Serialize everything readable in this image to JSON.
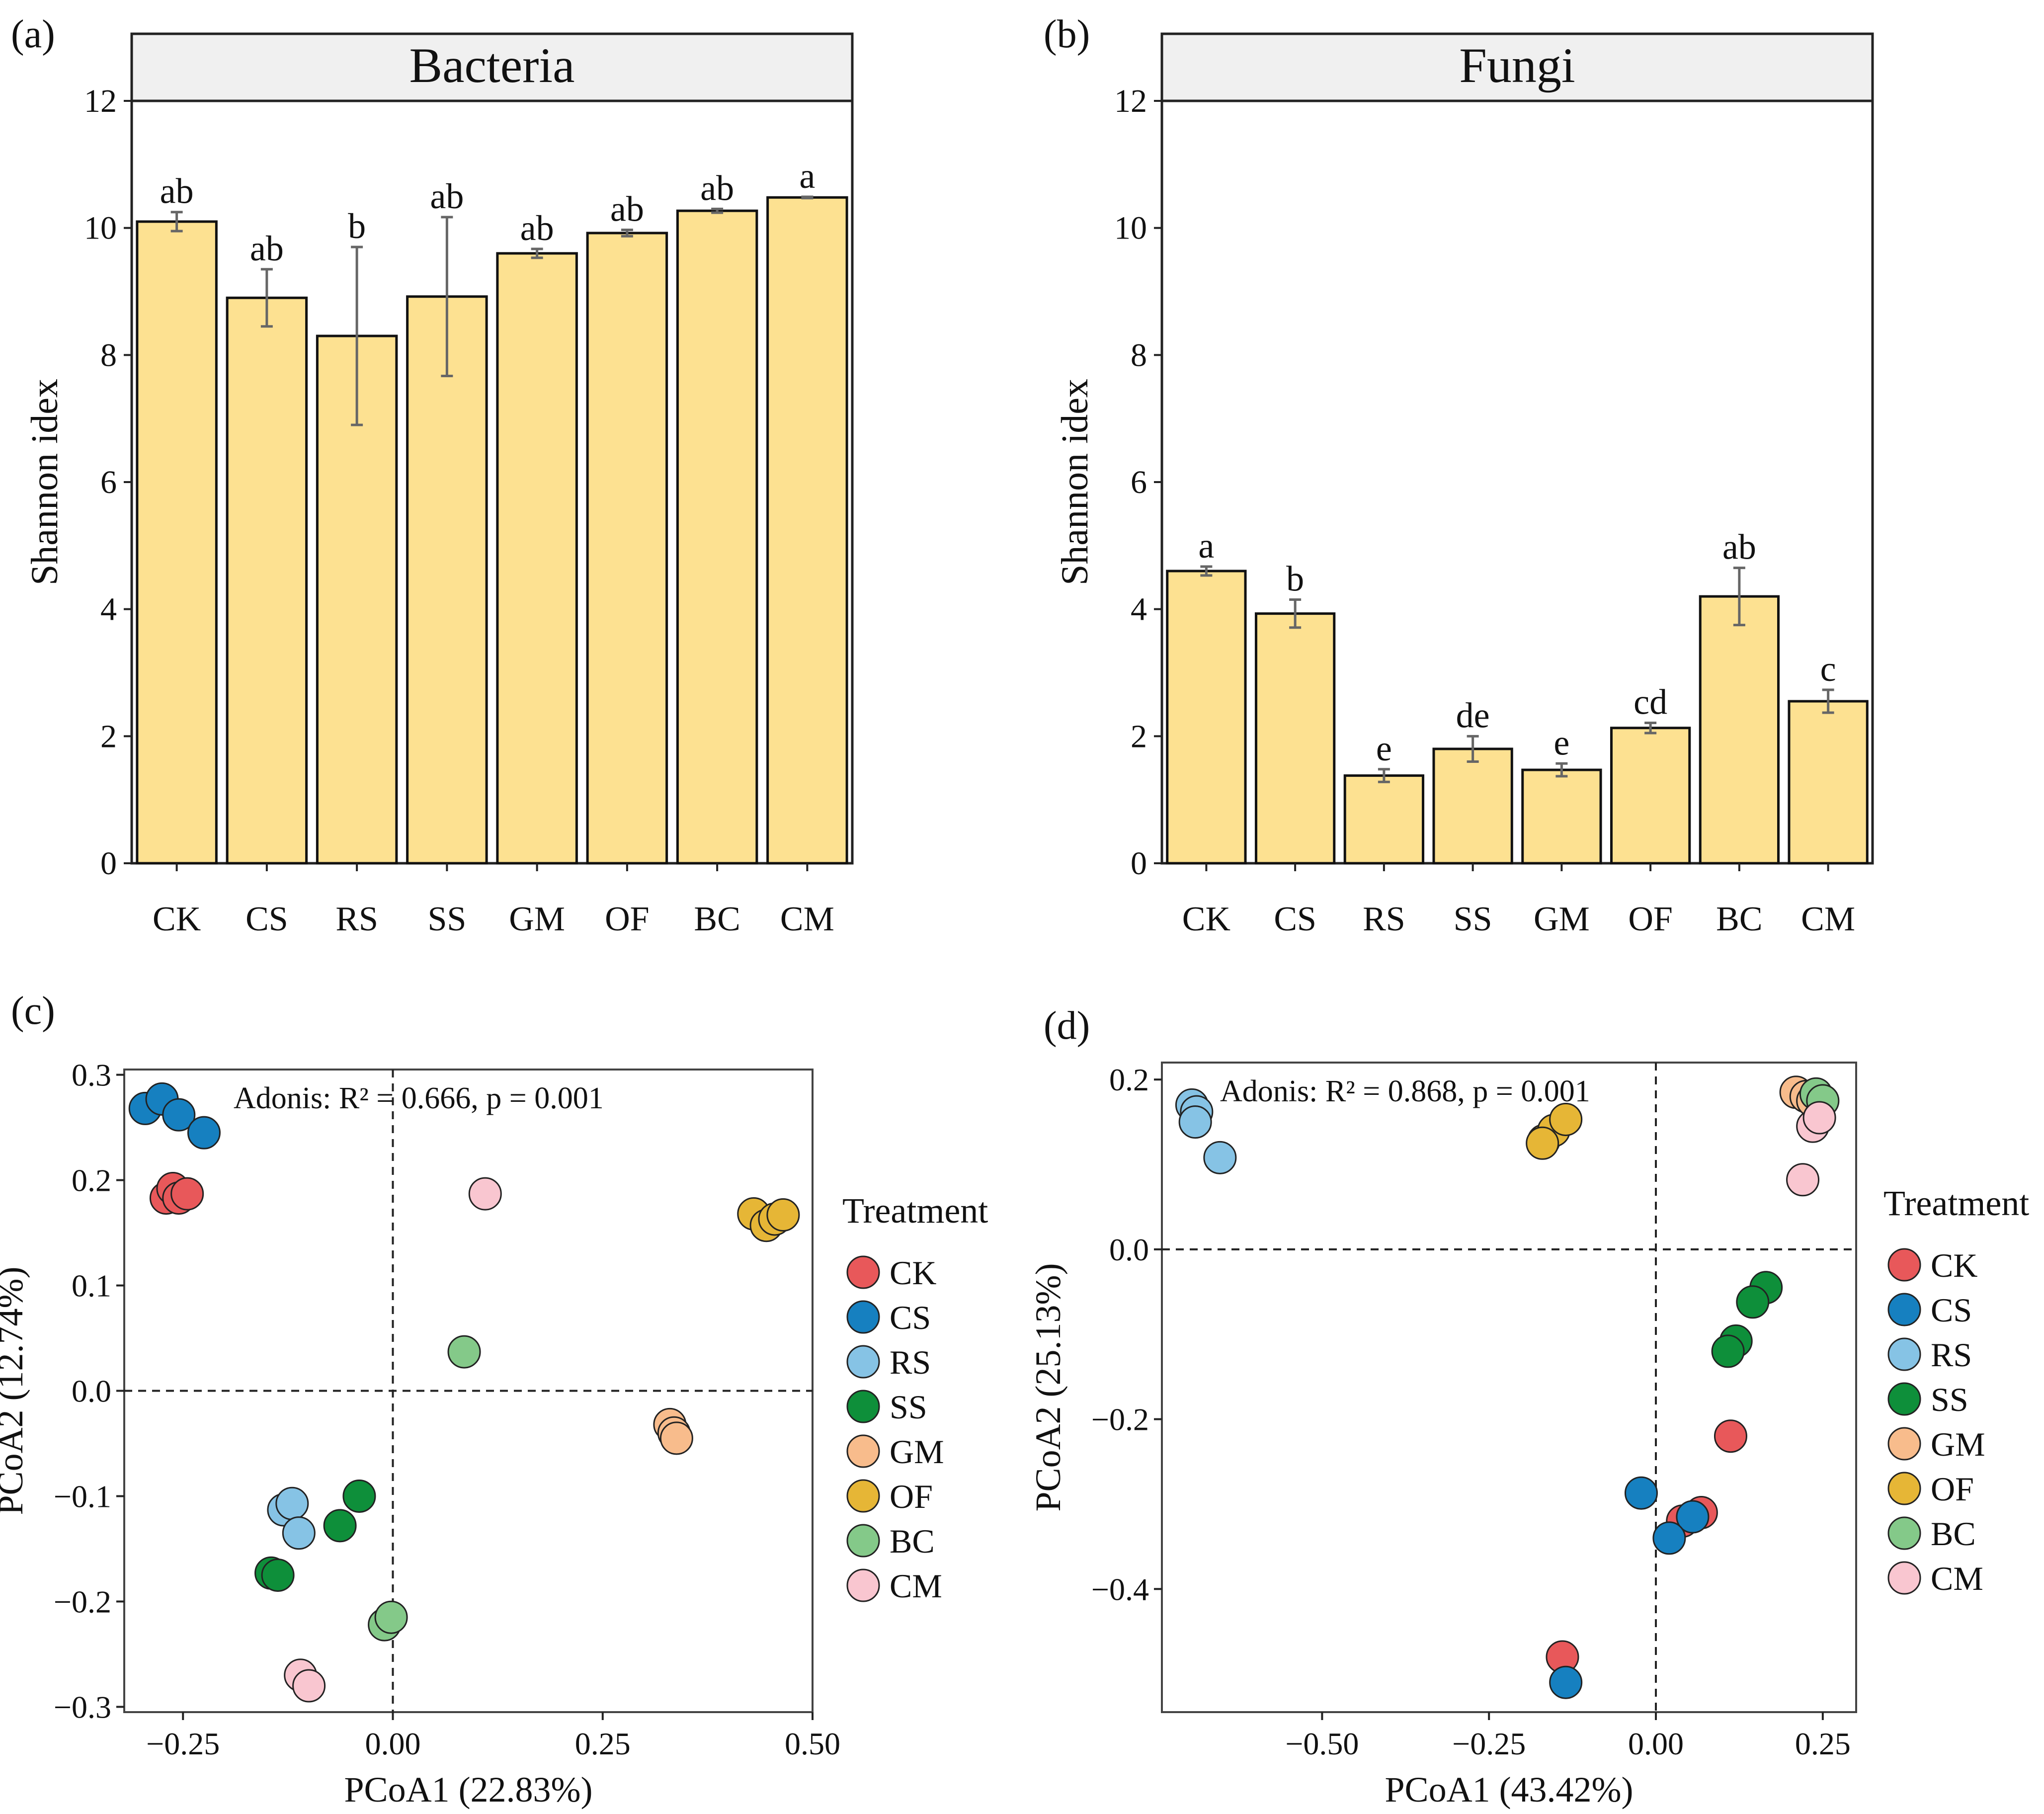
{
  "panels": {
    "a": {
      "label": "(a)"
    },
    "b": {
      "label": "(b)"
    },
    "c": {
      "label": "(c)"
    },
    "d": {
      "label": "(d)"
    }
  },
  "colors": {
    "bar_fill": "#FDE191",
    "strip_fill": "#F0F0F0",
    "CK": "#E8585A",
    "CS": "#1680C0",
    "RS": "#86C3E5",
    "SS": "#0E8F3A",
    "GM": "#F8BC8C",
    "OF": "#E6B636",
    "BC": "#84C989",
    "CM": "#F9C6D0"
  },
  "chart_data": [
    {
      "id": "a",
      "type": "bar",
      "title": "Bacteria",
      "xlabel": "",
      "ylabel": "Shannon idex",
      "categories": [
        "CK",
        "CS",
        "RS",
        "SS",
        "GM",
        "OF",
        "BC",
        "CM"
      ],
      "values": [
        10.1,
        8.9,
        8.3,
        8.92,
        9.6,
        9.92,
        10.27,
        10.48
      ],
      "errors": [
        0.15,
        0.45,
        1.4,
        1.25,
        0.07,
        0.05,
        0.03,
        0.01
      ],
      "letters": [
        "ab",
        "ab",
        "b",
        "ab",
        "ab",
        "ab",
        "ab",
        "a"
      ],
      "ylim": [
        0,
        12
      ],
      "yticks": [
        "0",
        "2",
        "4",
        "6",
        "8",
        "10",
        "12"
      ]
    },
    {
      "id": "b",
      "type": "bar",
      "title": "Fungi",
      "xlabel": "",
      "ylabel": "Shannon idex",
      "categories": [
        "CK",
        "CS",
        "RS",
        "SS",
        "GM",
        "OF",
        "BC",
        "CM"
      ],
      "values": [
        4.6,
        3.93,
        1.38,
        1.8,
        1.47,
        2.13,
        4.2,
        2.55
      ],
      "errors": [
        0.07,
        0.22,
        0.1,
        0.2,
        0.1,
        0.08,
        0.45,
        0.18
      ],
      "letters": [
        "a",
        "b",
        "e",
        "de",
        "e",
        "cd",
        "ab",
        "c"
      ],
      "ylim": [
        0,
        12
      ],
      "yticks": [
        "0",
        "2",
        "4",
        "6",
        "8",
        "10",
        "12"
      ]
    },
    {
      "id": "c",
      "type": "scatter",
      "xlabel": "PCoA1 (22.83%)",
      "ylabel": "PCoA2 (12.74%)",
      "annotation": "Adonis: R² = 0.666, p = 0.001",
      "xlim": [
        -0.32,
        0.5
      ],
      "ylim": [
        -0.305,
        0.305
      ],
      "xticks": [
        {
          "v": -0.25,
          "label": "−0.25"
        },
        {
          "v": 0,
          "label": "0.00"
        },
        {
          "v": 0.25,
          "label": "0.25"
        },
        {
          "v": 0.5,
          "label": "0.50"
        }
      ],
      "yticks": [
        {
          "v": -0.3,
          "label": "−0.3"
        },
        {
          "v": -0.2,
          "label": "−0.2"
        },
        {
          "v": -0.1,
          "label": "−0.1"
        },
        {
          "v": 0,
          "label": "0.0"
        },
        {
          "v": 0.1,
          "label": "0.1"
        },
        {
          "v": 0.2,
          "label": "0.2"
        },
        {
          "v": 0.3,
          "label": "0.3"
        }
      ],
      "legend_title": "Treatment",
      "legend": [
        "CK",
        "CS",
        "RS",
        "SS",
        "GM",
        "OF",
        "BC",
        "CM"
      ],
      "series": [
        {
          "name": "CS",
          "points": [
            [
              -0.295,
              0.268
            ],
            [
              -0.275,
              0.277
            ],
            [
              -0.255,
              0.262
            ],
            [
              -0.225,
              0.245
            ]
          ]
        },
        {
          "name": "CK",
          "points": [
            [
              -0.27,
              0.183
            ],
            [
              -0.262,
              0.192
            ],
            [
              -0.255,
              0.183
            ],
            [
              -0.245,
              0.187
            ]
          ]
        },
        {
          "name": "CM",
          "points": [
            [
              0.11,
              0.187
            ],
            [
              -0.11,
              -0.27
            ],
            [
              -0.1,
              -0.28
            ]
          ]
        },
        {
          "name": "OF",
          "points": [
            [
              0.43,
              0.168
            ],
            [
              0.445,
              0.157
            ],
            [
              0.455,
              0.163
            ],
            [
              0.465,
              0.167
            ]
          ]
        },
        {
          "name": "BC",
          "points": [
            [
              0.085,
              0.037
            ],
            [
              -0.01,
              -0.222
            ],
            [
              -0.002,
              -0.215
            ]
          ]
        },
        {
          "name": "GM",
          "points": [
            [
              0.33,
              -0.032
            ],
            [
              0.335,
              -0.04
            ],
            [
              0.338,
              -0.045
            ]
          ]
        },
        {
          "name": "RS",
          "points": [
            [
              -0.13,
              -0.113
            ],
            [
              -0.12,
              -0.107
            ],
            [
              -0.112,
              -0.135
            ]
          ]
        },
        {
          "name": "SS",
          "points": [
            [
              -0.04,
              -0.1
            ],
            [
              -0.063,
              -0.128
            ],
            [
              -0.145,
              -0.173
            ],
            [
              -0.137,
              -0.175
            ]
          ]
        }
      ]
    },
    {
      "id": "d",
      "type": "scatter",
      "xlabel": "PCoA1 (43.42%)",
      "ylabel": "PCoA2 (25.13%)",
      "annotation": "Adonis: R² = 0.868, p = 0.001",
      "xlim": [
        -0.74,
        0.3
      ],
      "ylim": [
        -0.545,
        0.22
      ],
      "xticks": [
        {
          "v": -0.5,
          "label": "−0.50"
        },
        {
          "v": -0.25,
          "label": "−0.25"
        },
        {
          "v": 0,
          "label": "0.00"
        },
        {
          "v": 0.25,
          "label": "0.25"
        }
      ],
      "yticks": [
        {
          "v": -0.4,
          "label": "−0.4"
        },
        {
          "v": -0.2,
          "label": "−0.2"
        },
        {
          "v": 0,
          "label": "0.0"
        },
        {
          "v": 0.2,
          "label": "0.2"
        }
      ],
      "legend_title": "Treatment",
      "legend": [
        "CK",
        "CS",
        "RS",
        "SS",
        "GM",
        "OF",
        "BC",
        "CM"
      ],
      "series": [
        {
          "name": "RS",
          "points": [
            [
              -0.695,
              0.17
            ],
            [
              -0.688,
              0.162
            ],
            [
              -0.69,
              0.15
            ],
            [
              -0.653,
              0.108
            ]
          ]
        },
        {
          "name": "OF",
          "points": [
            [
              -0.168,
              0.128
            ],
            [
              -0.153,
              0.14
            ],
            [
              -0.135,
              0.153
            ],
            [
              -0.17,
              0.125
            ]
          ]
        },
        {
          "name": "GM",
          "points": [
            [
              0.21,
              0.185
            ],
            [
              0.225,
              0.18
            ],
            [
              0.235,
              0.175
            ]
          ]
        },
        {
          "name": "BC",
          "points": [
            [
              0.24,
              0.183
            ],
            [
              0.25,
              0.175
            ]
          ]
        },
        {
          "name": "CM",
          "points": [
            [
              0.235,
              0.145
            ],
            [
              0.245,
              0.155
            ],
            [
              0.22,
              0.082
            ]
          ]
        },
        {
          "name": "SS",
          "points": [
            [
              0.165,
              -0.045
            ],
            [
              0.145,
              -0.062
            ],
            [
              0.12,
              -0.108
            ],
            [
              0.108,
              -0.12
            ]
          ]
        },
        {
          "name": "CK",
          "points": [
            [
              0.112,
              -0.22
            ],
            [
              0.068,
              -0.31
            ],
            [
              0.04,
              -0.32
            ],
            [
              -0.14,
              -0.48
            ]
          ]
        },
        {
          "name": "CS",
          "points": [
            [
              -0.022,
              -0.287
            ],
            [
              0.055,
              -0.315
            ],
            [
              0.02,
              -0.34
            ],
            [
              -0.135,
              -0.51
            ]
          ]
        }
      ]
    }
  ]
}
